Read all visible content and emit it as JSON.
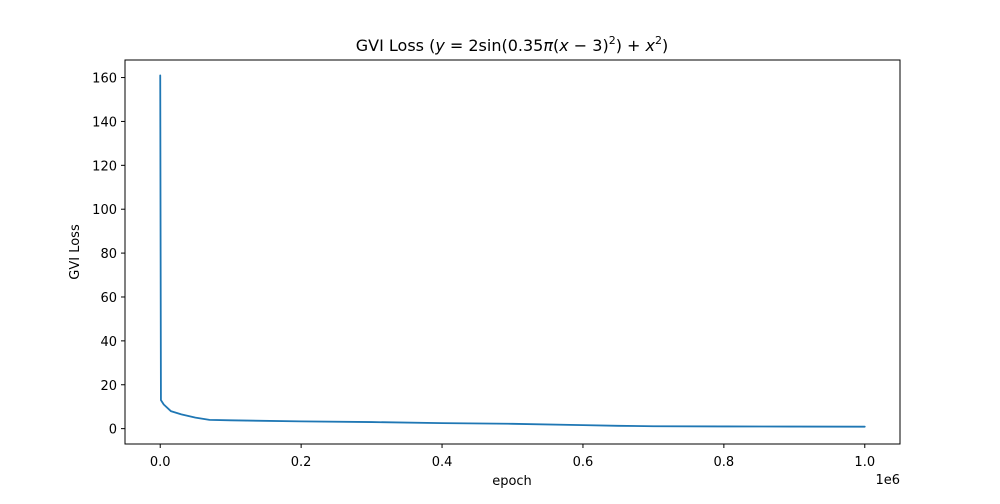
{
  "chart_data": {
    "type": "line",
    "title": {
      "prefix": "GVI Loss (",
      "y": "y",
      "eq": " = 2sin(0.35",
      "pi": "π",
      "paren_open": "(",
      "x1": "x",
      "minus": " − 3)",
      "sup1": "2",
      "mid": ") + ",
      "x2": "x",
      "sup2": "2",
      "suffix": ")"
    },
    "xlabel": "epoch",
    "ylabel": "GVI Loss",
    "x_offset_label": "1e6",
    "xlim": [
      -50000,
      1050000
    ],
    "ylim": [
      -7,
      168
    ],
    "x_ticks": [
      {
        "value": 0,
        "label": "0.0"
      },
      {
        "value": 200000,
        "label": "0.2"
      },
      {
        "value": 400000,
        "label": "0.4"
      },
      {
        "value": 600000,
        "label": "0.6"
      },
      {
        "value": 800000,
        "label": "0.8"
      },
      {
        "value": 1000000,
        "label": "1.0"
      }
    ],
    "y_ticks": [
      {
        "value": 0,
        "label": "0"
      },
      {
        "value": 20,
        "label": "20"
      },
      {
        "value": 40,
        "label": "40"
      },
      {
        "value": 60,
        "label": "60"
      },
      {
        "value": 80,
        "label": "80"
      },
      {
        "value": 100,
        "label": "100"
      },
      {
        "value": 120,
        "label": "120"
      },
      {
        "value": 140,
        "label": "140"
      },
      {
        "value": 160,
        "label": "160"
      }
    ],
    "grid": false,
    "colors": {
      "line": "#1f77b4",
      "axes": "#000000"
    },
    "series": [
      {
        "x": [
          0,
          1000,
          5000,
          15000,
          30000,
          50000,
          70000,
          100000,
          200000,
          300000,
          400000,
          500000,
          600000,
          650000,
          700000,
          800000,
          900000,
          1000000
        ],
        "y": [
          161,
          13,
          11,
          8,
          6.5,
          5,
          4,
          3.8,
          3.3,
          3.0,
          2.5,
          2.2,
          1.6,
          1.3,
          1.1,
          1.0,
          0.95,
          0.9
        ]
      }
    ]
  }
}
